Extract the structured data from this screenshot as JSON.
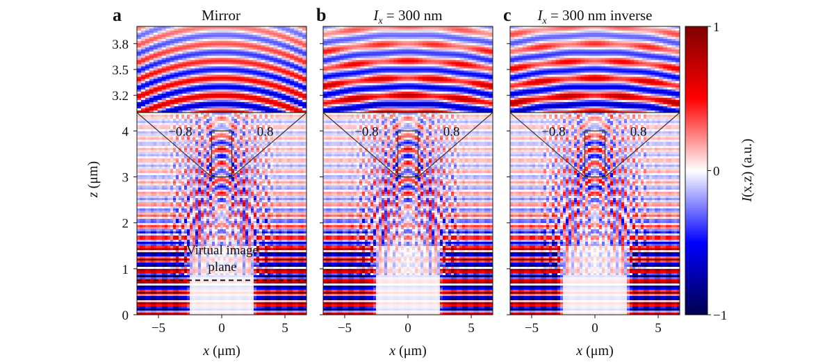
{
  "panels": [
    {
      "letter": "a",
      "title_italic": "",
      "title_rest": "Mirror",
      "inverse": false
    },
    {
      "letter": "b",
      "title_italic": "I",
      "title_sub": "x",
      "title_rest": " = 300 nm",
      "inverse": false
    },
    {
      "letter": "c",
      "title_italic": "I",
      "title_sub": "x",
      "title_rest": " = 300 nm inverse",
      "inverse": true
    }
  ],
  "inset": {
    "z_ticks": [
      "3.8",
      "3.5",
      "3.2"
    ],
    "z_values": [
      3.8,
      3.5,
      3.2
    ],
    "left_label": "−0.8",
    "right_label": "0.8"
  },
  "main": {
    "x_ticks": [
      "−5",
      "0",
      "5"
    ],
    "x_values": [
      -5,
      0,
      5
    ],
    "z_ticks": [
      "0",
      "1",
      "2",
      "3",
      "4"
    ],
    "z_values": [
      0,
      1,
      2,
      3,
      4
    ],
    "x_label_italic": "x",
    "x_label_rest": " (μm)",
    "z_label_italic": "z",
    "z_label_rest": " (μm)"
  },
  "annotation": {
    "line1": "Virtual image",
    "line2": "plane",
    "z_value": 0.75
  },
  "colorbar": {
    "ticks": [
      "1",
      "0",
      "−1"
    ],
    "values": [
      1,
      0,
      -1
    ],
    "label_italic": "I",
    "label_rest": "(x,z) (a.u.)",
    "colormap": "seismic",
    "colors": [
      "#00004c",
      "#0000ff",
      "#ffffff",
      "#ff0000",
      "#7f0000"
    ]
  },
  "chart_data": {
    "type": "heatmap",
    "colormap": "seismic",
    "x_range": [
      -6.7,
      6.7
    ],
    "z_range": [
      0,
      4.4
    ],
    "inset_x_range": [
      -0.8,
      0.8
    ],
    "inset_z_range": [
      3.0,
      4.0
    ],
    "color_range": [
      -1,
      1
    ]
  }
}
